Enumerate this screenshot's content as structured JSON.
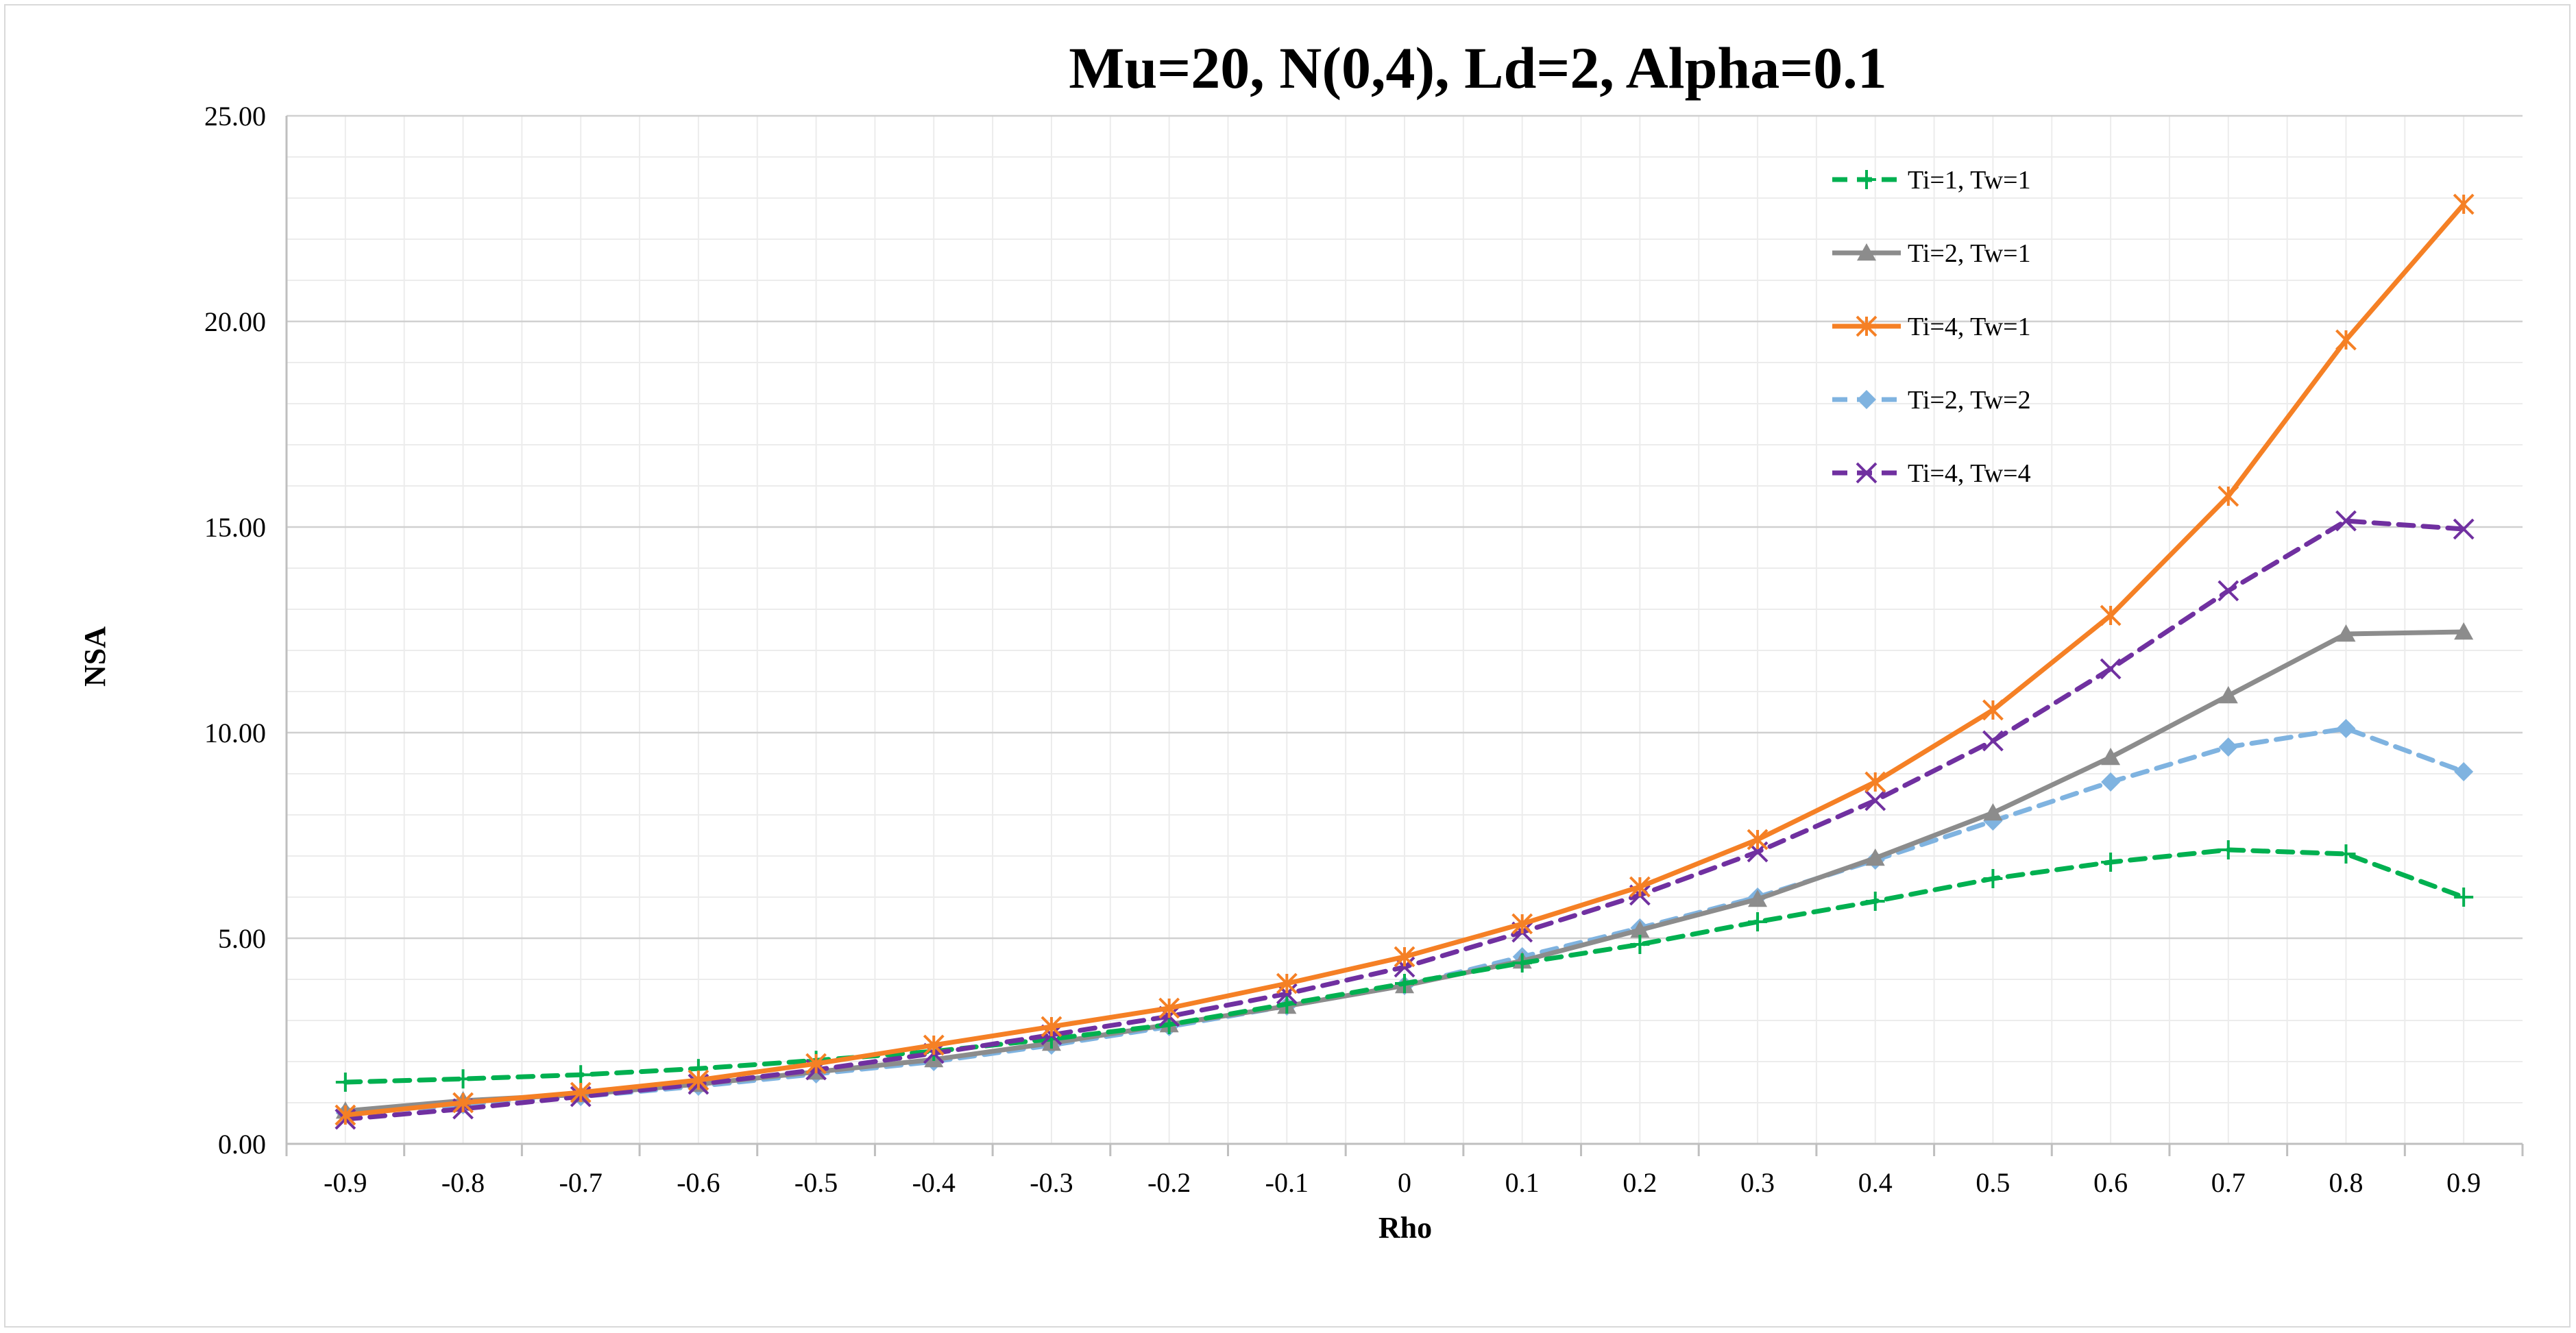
{
  "chart_data": {
    "type": "line",
    "title": "Mu=20, N(0,4), Ld=2, Alpha=0.1",
    "xlabel": "Rho",
    "ylabel": "NSA",
    "x": [
      -0.9,
      -0.8,
      -0.7,
      -0.6,
      -0.5,
      -0.4,
      -0.3,
      -0.2,
      -0.1,
      0,
      0.1,
      0.2,
      0.3,
      0.4,
      0.5,
      0.6,
      0.7,
      0.8,
      0.9
    ],
    "x_tick_labels": [
      "-0.9",
      "-0.8",
      "-0.7",
      "-0.6",
      "-0.5",
      "-0.4",
      "-0.3",
      "-0.2",
      "-0.1",
      "0",
      "0.1",
      "0.2",
      "0.3",
      "0.4",
      "0.5",
      "0.6",
      "0.7",
      "0.8",
      "0.9"
    ],
    "y_tick_labels": [
      "0.00",
      "5.00",
      "10.00",
      "15.00",
      "20.00",
      "25.00"
    ],
    "ylim": [
      0,
      25
    ],
    "grid": true,
    "legend_position": "top-right",
    "series": [
      {
        "name": "Ti=1, Tw=1",
        "color": "#00b050",
        "dash": "dashed",
        "marker": "plus",
        "values": [
          1.5,
          1.58,
          1.68,
          1.83,
          2.03,
          2.25,
          2.55,
          2.9,
          3.4,
          3.9,
          4.4,
          4.85,
          5.4,
          5.9,
          6.45,
          6.85,
          7.15,
          7.05,
          6.0
        ]
      },
      {
        "name": "Ti=2, Tw=1",
        "color": "#8c8c8c",
        "dash": "solid",
        "marker": "triangle",
        "values": [
          0.8,
          1.05,
          1.2,
          1.45,
          1.75,
          2.05,
          2.45,
          2.9,
          3.35,
          3.85,
          4.45,
          5.2,
          5.95,
          6.95,
          8.05,
          9.4,
          10.9,
          12.4,
          12.45
        ]
      },
      {
        "name": "Ti=4, Tw=1",
        "color": "#f58025",
        "dash": "solid",
        "marker": "star",
        "values": [
          0.7,
          1.0,
          1.25,
          1.55,
          1.95,
          2.4,
          2.85,
          3.3,
          3.9,
          4.55,
          5.35,
          6.25,
          7.4,
          8.8,
          10.55,
          12.85,
          15.75,
          19.55,
          22.85
        ]
      },
      {
        "name": "Ti=2, Tw=2",
        "color": "#7fb3e0",
        "dash": "dashed",
        "marker": "diamond",
        "values": [
          0.75,
          0.95,
          1.15,
          1.4,
          1.7,
          2.0,
          2.4,
          2.85,
          3.35,
          3.85,
          4.55,
          5.25,
          6.0,
          6.9,
          7.85,
          8.8,
          9.65,
          10.1,
          9.05
        ]
      },
      {
        "name": "Ti=4, Tw=4",
        "color": "#7030a0",
        "dash": "dashed",
        "marker": "x",
        "values": [
          0.6,
          0.85,
          1.15,
          1.45,
          1.8,
          2.2,
          2.65,
          3.1,
          3.65,
          4.3,
          5.15,
          6.05,
          7.1,
          8.35,
          9.8,
          11.55,
          13.45,
          15.15,
          14.95
        ]
      }
    ]
  }
}
